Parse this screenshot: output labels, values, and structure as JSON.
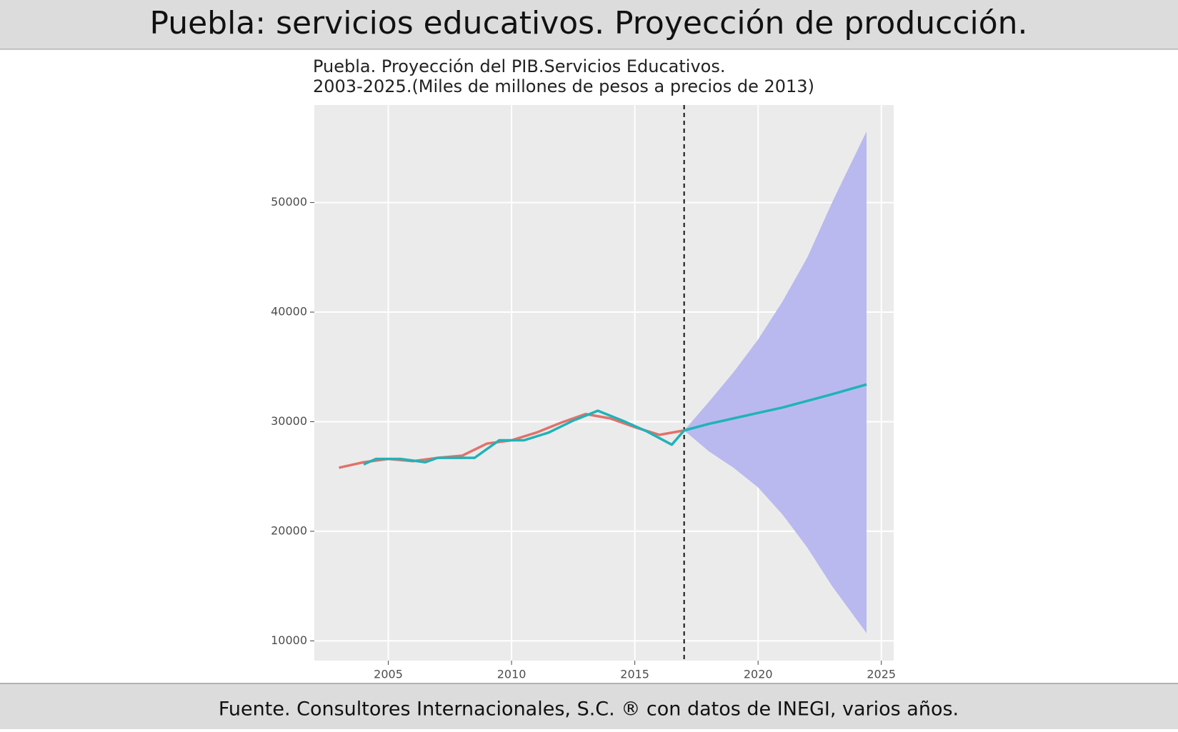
{
  "header": {
    "title": "Puebla: servicios educativos. Proyección de producción."
  },
  "footer": {
    "source": "Fuente. Consultores Internacionales, S.C. ® con datos de INEGI, varios años."
  },
  "chart_data": {
    "type": "line",
    "title": [
      "Puebla. Proyección del PIB.Servicios Educativos.",
      "2003-2025.(Miles de millones de pesos a precios de 2013)"
    ],
    "xlim": [
      2002,
      2025.5
    ],
    "ylim": [
      8200,
      58900
    ],
    "xticks": [
      2005,
      2010,
      2015,
      2020,
      2025
    ],
    "yticks": [
      10000,
      20000,
      30000,
      40000,
      50000
    ],
    "grid": true,
    "vline": 2017,
    "band": {
      "color": "#b9b9f0",
      "x": [
        2017,
        2018,
        2019,
        2020,
        2021,
        2022,
        2023,
        2024.4
      ],
      "lower": [
        29200,
        27300,
        25800,
        24000,
        21500,
        18500,
        15000,
        10700
      ],
      "upper": [
        29200,
        31800,
        34500,
        37500,
        41000,
        45000,
        50000,
        56500
      ]
    },
    "series": [
      {
        "color": "#e0726b",
        "x": [
          2003,
          2004,
          2005,
          2006,
          2007,
          2008,
          2009,
          2010,
          2011,
          2012,
          2013,
          2014,
          2015,
          2016,
          2017
        ],
        "values": [
          25800,
          26300,
          26600,
          26400,
          26700,
          26900,
          28000,
          28300,
          29000,
          29900,
          30700,
          30300,
          29500,
          28800,
          29200
        ]
      },
      {
        "color": "#1fb3b8",
        "x": [
          2004,
          2004.5,
          2005.5,
          2006.5,
          2007,
          2008.5,
          2009.5,
          2010.5,
          2011.5,
          2012.5,
          2013.5,
          2014.5,
          2015.5,
          2016.5,
          2017,
          2018,
          2019,
          2020,
          2021,
          2022,
          2023,
          2024.4
        ],
        "values": [
          26100,
          26600,
          26600,
          26300,
          26700,
          26700,
          28300,
          28300,
          29000,
          30100,
          31000,
          30100,
          29100,
          27900,
          29200,
          29800,
          30300,
          30800,
          31300,
          31900,
          32500,
          33400
        ]
      }
    ]
  }
}
